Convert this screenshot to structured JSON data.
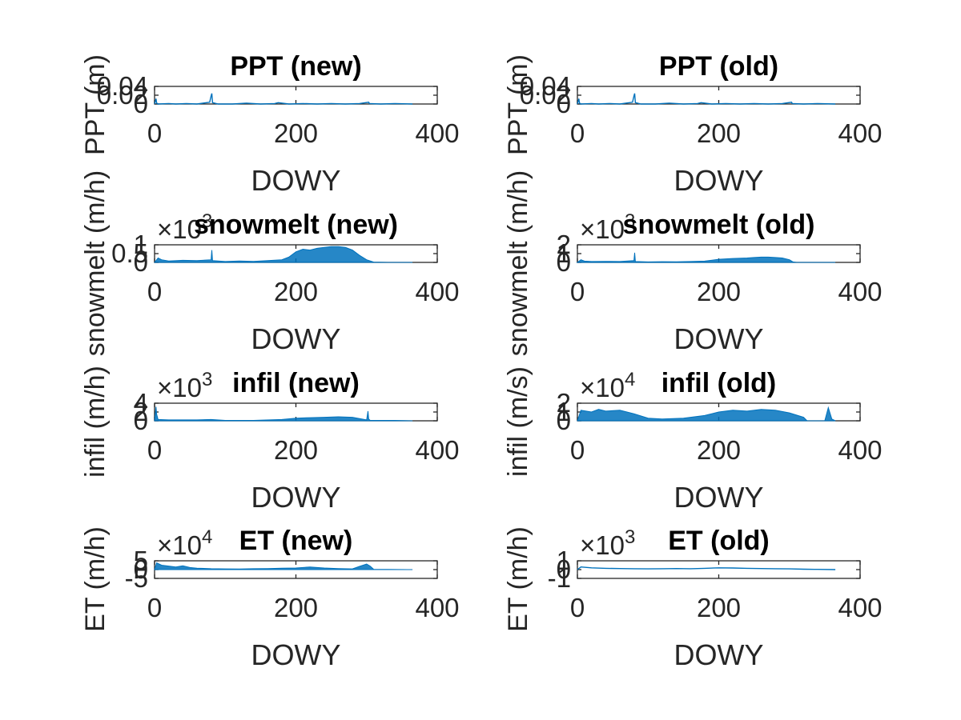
{
  "colors": {
    "line": "#0072BD",
    "axis": "#262626",
    "title": "#000000"
  },
  "chart_data": [
    {
      "type": "line",
      "title": "PPT (new)",
      "xlabel": "DOWY",
      "ylabel": "PPT (m)",
      "xlim": [
        0,
        400
      ],
      "ylim": [
        0,
        0.04
      ],
      "x_ticks": [
        "0",
        "200",
        "400"
      ],
      "y_ticks": [
        "0",
        "0.02",
        "0.04"
      ],
      "exponent": "",
      "series": [
        {
          "x": [
            0,
            2,
            3,
            5,
            20,
            30,
            45,
            60,
            78,
            80,
            81,
            82,
            90,
            110,
            130,
            150,
            170,
            175,
            190,
            210,
            230,
            250,
            270,
            290,
            303,
            304,
            320,
            340,
            365
          ],
          "y": [
            0,
            0.012,
            0.002,
            0,
            0.001,
            0,
            0.001,
            0,
            0.004,
            0.018,
            0.024,
            0.003,
            0,
            0,
            0.002,
            0,
            0.001,
            0.003,
            0,
            0.001,
            0,
            0.001,
            0,
            0.001,
            0.004,
            0.001,
            0,
            0.001,
            0
          ]
        }
      ]
    },
    {
      "type": "line",
      "title": "PPT (old)",
      "xlabel": "DOWY",
      "ylabel": "PPT (m)",
      "xlim": [
        0,
        400
      ],
      "ylim": [
        0,
        0.04
      ],
      "x_ticks": [
        "0",
        "200",
        "400"
      ],
      "y_ticks": [
        "0",
        "0.02",
        "0.04"
      ],
      "exponent": "",
      "series": [
        {
          "x": [
            0,
            2,
            3,
            5,
            20,
            30,
            45,
            60,
            78,
            80,
            81,
            82,
            90,
            110,
            130,
            150,
            170,
            175,
            190,
            210,
            230,
            250,
            270,
            290,
            303,
            304,
            320,
            340,
            365
          ],
          "y": [
            0,
            0.012,
            0.002,
            0,
            0.001,
            0,
            0.001,
            0,
            0.004,
            0.018,
            0.024,
            0.003,
            0,
            0,
            0.002,
            0,
            0.001,
            0.003,
            0,
            0.001,
            0,
            0.001,
            0,
            0.001,
            0.004,
            0.001,
            0,
            0.001,
            0
          ]
        }
      ]
    },
    {
      "type": "area",
      "title": "snowmelt (new)",
      "xlabel": "DOWY",
      "ylabel": "snowmelt (m/h)",
      "xlim": [
        0,
        400
      ],
      "ylim": [
        0,
        1
      ],
      "x_ticks": [
        "0",
        "200",
        "400"
      ],
      "y_ticks": [
        "0",
        "0.5",
        "1"
      ],
      "exponent": "3",
      "series": [
        {
          "x": [
            0,
            5,
            10,
            20,
            40,
            60,
            80,
            81,
            82,
            100,
            120,
            140,
            160,
            180,
            190,
            200,
            210,
            220,
            230,
            240,
            250,
            260,
            270,
            280,
            290,
            300,
            310,
            330,
            365
          ],
          "y": [
            0,
            0.25,
            0.15,
            0.08,
            0.12,
            0.1,
            0.15,
            0.7,
            0.1,
            0.05,
            0.08,
            0.06,
            0.1,
            0.15,
            0.3,
            0.6,
            0.75,
            0.7,
            0.8,
            0.85,
            0.9,
            0.9,
            0.85,
            0.7,
            0.4,
            0.15,
            0.02,
            0,
            0
          ]
        }
      ]
    },
    {
      "type": "area",
      "title": "snowmelt (old)",
      "xlabel": "DOWY",
      "ylabel": "snowmelt (m/h)",
      "xlim": [
        0,
        400
      ],
      "ylim": [
        0,
        2
      ],
      "x_ticks": [
        "0",
        "200",
        "400"
      ],
      "y_ticks": [
        "0",
        "1",
        "2"
      ],
      "exponent": "3",
      "series": [
        {
          "x": [
            0,
            5,
            10,
            20,
            40,
            60,
            80,
            81,
            82,
            100,
            120,
            140,
            160,
            180,
            200,
            220,
            240,
            250,
            260,
            270,
            280,
            290,
            300,
            305,
            310,
            330,
            365
          ],
          "y": [
            0,
            0.3,
            0.15,
            0.1,
            0.12,
            0.1,
            0.2,
            1.1,
            0.1,
            0.05,
            0.08,
            0.06,
            0.1,
            0.15,
            0.35,
            0.45,
            0.5,
            0.55,
            0.6,
            0.6,
            0.55,
            0.5,
            0.3,
            0.05,
            0,
            0,
            0
          ]
        }
      ]
    },
    {
      "type": "area",
      "title": "infil (new)",
      "xlabel": "DOWY",
      "ylabel": "infil (m/h)",
      "xlim": [
        0,
        400
      ],
      "ylim": [
        0,
        4
      ],
      "x_ticks": [
        "0",
        "200",
        "400"
      ],
      "y_ticks": [
        "0",
        "2",
        "4"
      ],
      "exponent": "3",
      "series": [
        {
          "x": [
            0,
            2,
            3,
            5,
            20,
            60,
            80,
            100,
            140,
            180,
            200,
            220,
            240,
            260,
            280,
            300,
            302,
            303,
            305,
            340,
            365
          ],
          "y": [
            0,
            3.2,
            1.5,
            0.3,
            0.2,
            0.2,
            0.3,
            0.1,
            0.1,
            0.3,
            0.6,
            0.7,
            0.8,
            0.9,
            0.8,
            0.2,
            2.2,
            0.4,
            0.1,
            0.1,
            0
          ]
        }
      ]
    },
    {
      "type": "area",
      "title": "infil (old)",
      "xlabel": "DOWY",
      "ylabel": "infil (m/s)",
      "xlim": [
        0,
        400
      ],
      "ylim": [
        0,
        2
      ],
      "x_ticks": [
        "0",
        "200",
        "400"
      ],
      "y_ticks": [
        "0",
        "1",
        "2"
      ],
      "exponent": "4",
      "series": [
        {
          "x": [
            0,
            5,
            20,
            30,
            40,
            60,
            80,
            100,
            120,
            150,
            180,
            200,
            220,
            240,
            260,
            280,
            300,
            320,
            325,
            330,
            350,
            355,
            360,
            365
          ],
          "y": [
            0,
            1.2,
            1.0,
            1.3,
            1.1,
            1.2,
            0.8,
            0.3,
            0.2,
            0.3,
            0.6,
            1.0,
            1.2,
            1.1,
            1.3,
            1.2,
            0.9,
            0.4,
            0,
            0,
            0,
            1.5,
            0.2,
            0
          ]
        }
      ]
    },
    {
      "type": "area",
      "title": "ET (new)",
      "xlabel": "DOWY",
      "ylabel": "ET (m/h)",
      "xlim": [
        0,
        400
      ],
      "ylim": [
        -5,
        5
      ],
      "x_ticks": [
        "0",
        "200",
        "400"
      ],
      "y_ticks": [
        "-5",
        "0",
        "5"
      ],
      "exponent": "4",
      "series": [
        {
          "x": [
            0,
            3,
            10,
            20,
            30,
            40,
            50,
            60,
            80,
            100,
            120,
            140,
            160,
            180,
            200,
            220,
            240,
            260,
            280,
            290,
            300,
            305,
            310,
            330,
            365
          ],
          "y": [
            0,
            3.8,
            2.5,
            2.0,
            1.5,
            2.2,
            1.2,
            0.8,
            0.5,
            0.4,
            0.3,
            0.5,
            0.6,
            0.8,
            0.9,
            1.5,
            0.9,
            0.6,
            0.4,
            1.8,
            3.2,
            2.0,
            0.2,
            0.1,
            0
          ]
        }
      ]
    },
    {
      "type": "line",
      "title": "ET (old)",
      "xlabel": "DOWY",
      "ylabel": "ET (m/h)",
      "xlim": [
        0,
        400
      ],
      "ylim": [
        -1,
        1
      ],
      "x_ticks": [
        "0",
        "200",
        "400"
      ],
      "y_ticks": [
        "-1",
        "0",
        "1"
      ],
      "exponent": "3",
      "series": [
        {
          "x": [
            0,
            5,
            20,
            40,
            60,
            80,
            100,
            120,
            140,
            160,
            180,
            200,
            220,
            240,
            260,
            280,
            300,
            320,
            340,
            365
          ],
          "y": [
            0,
            0.3,
            0.2,
            0.15,
            0.12,
            0.1,
            0.08,
            0.1,
            0.12,
            0.1,
            0.15,
            0.2,
            0.18,
            0.15,
            0.12,
            0.1,
            0.08,
            0.05,
            0.03,
            0
          ]
        }
      ]
    }
  ]
}
